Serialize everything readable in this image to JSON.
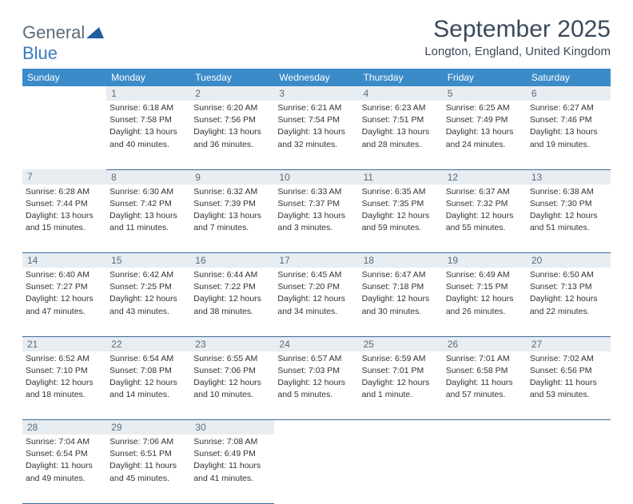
{
  "logo": {
    "word1": "General",
    "word2": "Blue"
  },
  "title": "September 2025",
  "location": "Longton, England, United Kingdom",
  "colors": {
    "header_bg": "#3b8bc9",
    "header_text": "#ffffff",
    "daynum_bg": "#e8edf1",
    "daynum_text": "#5a6b78",
    "border": "#3a6a9a",
    "logo_gray": "#5a6b78",
    "logo_blue": "#3b7bbf",
    "title_color": "#3a4a5a"
  },
  "weekdays": [
    "Sunday",
    "Monday",
    "Tuesday",
    "Wednesday",
    "Thursday",
    "Friday",
    "Saturday"
  ],
  "weeks": [
    {
      "nums": [
        "",
        "1",
        "2",
        "3",
        "4",
        "5",
        "6"
      ],
      "cells": [
        null,
        {
          "sunrise": "Sunrise: 6:18 AM",
          "sunset": "Sunset: 7:58 PM",
          "daylight1": "Daylight: 13 hours",
          "daylight2": "and 40 minutes."
        },
        {
          "sunrise": "Sunrise: 6:20 AM",
          "sunset": "Sunset: 7:56 PM",
          "daylight1": "Daylight: 13 hours",
          "daylight2": "and 36 minutes."
        },
        {
          "sunrise": "Sunrise: 6:21 AM",
          "sunset": "Sunset: 7:54 PM",
          "daylight1": "Daylight: 13 hours",
          "daylight2": "and 32 minutes."
        },
        {
          "sunrise": "Sunrise: 6:23 AM",
          "sunset": "Sunset: 7:51 PM",
          "daylight1": "Daylight: 13 hours",
          "daylight2": "and 28 minutes."
        },
        {
          "sunrise": "Sunrise: 6:25 AM",
          "sunset": "Sunset: 7:49 PM",
          "daylight1": "Daylight: 13 hours",
          "daylight2": "and 24 minutes."
        },
        {
          "sunrise": "Sunrise: 6:27 AM",
          "sunset": "Sunset: 7:46 PM",
          "daylight1": "Daylight: 13 hours",
          "daylight2": "and 19 minutes."
        }
      ]
    },
    {
      "nums": [
        "7",
        "8",
        "9",
        "10",
        "11",
        "12",
        "13"
      ],
      "cells": [
        {
          "sunrise": "Sunrise: 6:28 AM",
          "sunset": "Sunset: 7:44 PM",
          "daylight1": "Daylight: 13 hours",
          "daylight2": "and 15 minutes."
        },
        {
          "sunrise": "Sunrise: 6:30 AM",
          "sunset": "Sunset: 7:42 PM",
          "daylight1": "Daylight: 13 hours",
          "daylight2": "and 11 minutes."
        },
        {
          "sunrise": "Sunrise: 6:32 AM",
          "sunset": "Sunset: 7:39 PM",
          "daylight1": "Daylight: 13 hours",
          "daylight2": "and 7 minutes."
        },
        {
          "sunrise": "Sunrise: 6:33 AM",
          "sunset": "Sunset: 7:37 PM",
          "daylight1": "Daylight: 13 hours",
          "daylight2": "and 3 minutes."
        },
        {
          "sunrise": "Sunrise: 6:35 AM",
          "sunset": "Sunset: 7:35 PM",
          "daylight1": "Daylight: 12 hours",
          "daylight2": "and 59 minutes."
        },
        {
          "sunrise": "Sunrise: 6:37 AM",
          "sunset": "Sunset: 7:32 PM",
          "daylight1": "Daylight: 12 hours",
          "daylight2": "and 55 minutes."
        },
        {
          "sunrise": "Sunrise: 6:38 AM",
          "sunset": "Sunset: 7:30 PM",
          "daylight1": "Daylight: 12 hours",
          "daylight2": "and 51 minutes."
        }
      ]
    },
    {
      "nums": [
        "14",
        "15",
        "16",
        "17",
        "18",
        "19",
        "20"
      ],
      "cells": [
        {
          "sunrise": "Sunrise: 6:40 AM",
          "sunset": "Sunset: 7:27 PM",
          "daylight1": "Daylight: 12 hours",
          "daylight2": "and 47 minutes."
        },
        {
          "sunrise": "Sunrise: 6:42 AM",
          "sunset": "Sunset: 7:25 PM",
          "daylight1": "Daylight: 12 hours",
          "daylight2": "and 43 minutes."
        },
        {
          "sunrise": "Sunrise: 6:44 AM",
          "sunset": "Sunset: 7:22 PM",
          "daylight1": "Daylight: 12 hours",
          "daylight2": "and 38 minutes."
        },
        {
          "sunrise": "Sunrise: 6:45 AM",
          "sunset": "Sunset: 7:20 PM",
          "daylight1": "Daylight: 12 hours",
          "daylight2": "and 34 minutes."
        },
        {
          "sunrise": "Sunrise: 6:47 AM",
          "sunset": "Sunset: 7:18 PM",
          "daylight1": "Daylight: 12 hours",
          "daylight2": "and 30 minutes."
        },
        {
          "sunrise": "Sunrise: 6:49 AM",
          "sunset": "Sunset: 7:15 PM",
          "daylight1": "Daylight: 12 hours",
          "daylight2": "and 26 minutes."
        },
        {
          "sunrise": "Sunrise: 6:50 AM",
          "sunset": "Sunset: 7:13 PM",
          "daylight1": "Daylight: 12 hours",
          "daylight2": "and 22 minutes."
        }
      ]
    },
    {
      "nums": [
        "21",
        "22",
        "23",
        "24",
        "25",
        "26",
        "27"
      ],
      "cells": [
        {
          "sunrise": "Sunrise: 6:52 AM",
          "sunset": "Sunset: 7:10 PM",
          "daylight1": "Daylight: 12 hours",
          "daylight2": "and 18 minutes."
        },
        {
          "sunrise": "Sunrise: 6:54 AM",
          "sunset": "Sunset: 7:08 PM",
          "daylight1": "Daylight: 12 hours",
          "daylight2": "and 14 minutes."
        },
        {
          "sunrise": "Sunrise: 6:55 AM",
          "sunset": "Sunset: 7:06 PM",
          "daylight1": "Daylight: 12 hours",
          "daylight2": "and 10 minutes."
        },
        {
          "sunrise": "Sunrise: 6:57 AM",
          "sunset": "Sunset: 7:03 PM",
          "daylight1": "Daylight: 12 hours",
          "daylight2": "and 5 minutes."
        },
        {
          "sunrise": "Sunrise: 6:59 AM",
          "sunset": "Sunset: 7:01 PM",
          "daylight1": "Daylight: 12 hours",
          "daylight2": "and 1 minute."
        },
        {
          "sunrise": "Sunrise: 7:01 AM",
          "sunset": "Sunset: 6:58 PM",
          "daylight1": "Daylight: 11 hours",
          "daylight2": "and 57 minutes."
        },
        {
          "sunrise": "Sunrise: 7:02 AM",
          "sunset": "Sunset: 6:56 PM",
          "daylight1": "Daylight: 11 hours",
          "daylight2": "and 53 minutes."
        }
      ]
    },
    {
      "nums": [
        "28",
        "29",
        "30",
        "",
        "",
        "",
        ""
      ],
      "cells": [
        {
          "sunrise": "Sunrise: 7:04 AM",
          "sunset": "Sunset: 6:54 PM",
          "daylight1": "Daylight: 11 hours",
          "daylight2": "and 49 minutes."
        },
        {
          "sunrise": "Sunrise: 7:06 AM",
          "sunset": "Sunset: 6:51 PM",
          "daylight1": "Daylight: 11 hours",
          "daylight2": "and 45 minutes."
        },
        {
          "sunrise": "Sunrise: 7:08 AM",
          "sunset": "Sunset: 6:49 PM",
          "daylight1": "Daylight: 11 hours",
          "daylight2": "and 41 minutes."
        },
        null,
        null,
        null,
        null
      ]
    }
  ]
}
